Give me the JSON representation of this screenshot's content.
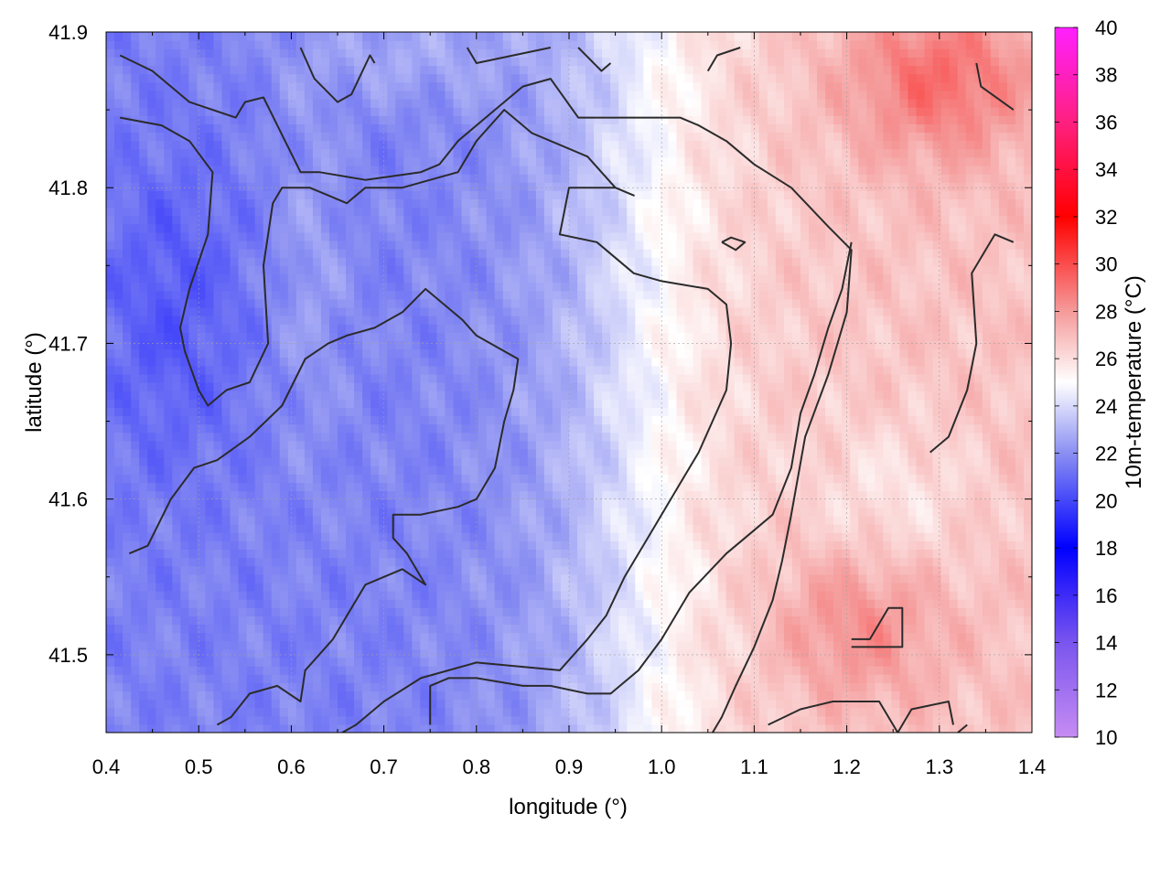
{
  "chart_data": {
    "type": "heatmap",
    "title": "",
    "xlabel": "longitude (°)",
    "ylabel": "latitude (°)",
    "colorbar_label": "10m-temperature (°C)",
    "xlim": [
      0.4,
      1.4
    ],
    "ylim": [
      41.45,
      41.9
    ],
    "x_ticks": [
      "0.4",
      "0.5",
      "0.6",
      "0.7",
      "0.8",
      "0.9",
      "1.0",
      "1.1",
      "1.2",
      "1.3",
      "1.4"
    ],
    "y_ticks": [
      "41.5",
      "41.6",
      "41.7",
      "41.8",
      "41.9"
    ],
    "colorbar_range": [
      10,
      40
    ],
    "colorbar_ticks": [
      "10",
      "12",
      "14",
      "16",
      "18",
      "20",
      "22",
      "24",
      "26",
      "28",
      "30",
      "32",
      "34",
      "36",
      "38",
      "40"
    ],
    "colormap": [
      {
        "value": 10,
        "color": "#c68cf2"
      },
      {
        "value": 14,
        "color": "#7a55ee"
      },
      {
        "value": 18,
        "color": "#0000ff"
      },
      {
        "value": 22,
        "color": "#8a8ff2"
      },
      {
        "value": 25,
        "color": "#ffffff"
      },
      {
        "value": 28,
        "color": "#f59a9a"
      },
      {
        "value": 32,
        "color": "#ff0000"
      },
      {
        "value": 36,
        "color": "#ff2080"
      },
      {
        "value": 40,
        "color": "#ff20ff"
      }
    ],
    "grid": true,
    "contour_color": "#2b2b2b",
    "contours": [
      [
        [
          0.415,
          41.885
        ],
        [
          0.45,
          41.875
        ],
        [
          0.49,
          41.855
        ],
        [
          0.54,
          41.845
        ],
        [
          0.55,
          41.855
        ],
        [
          0.57,
          41.858
        ],
        [
          0.61,
          41.81
        ],
        [
          0.63,
          41.81
        ],
        [
          0.68,
          41.805
        ],
        [
          0.74,
          41.81
        ],
        [
          0.76,
          41.815
        ],
        [
          0.78,
          41.83
        ],
        [
          0.82,
          41.85
        ],
        [
          0.85,
          41.865
        ],
        [
          0.88,
          41.87
        ],
        [
          0.91,
          41.845
        ],
        [
          1.02,
          41.845
        ],
        [
          1.04,
          41.84
        ],
        [
          1.07,
          41.83
        ],
        [
          1.1,
          41.815
        ],
        [
          1.14,
          41.8
        ],
        [
          1.18,
          41.775
        ],
        [
          1.205,
          41.76
        ],
        [
          1.2,
          41.72
        ],
        [
          1.18,
          41.68
        ],
        [
          1.155,
          41.64
        ],
        [
          1.14,
          41.59
        ],
        [
          1.13,
          41.56
        ],
        [
          1.12,
          41.535
        ],
        [
          1.1,
          41.505
        ],
        [
          1.08,
          41.48
        ],
        [
          1.065,
          41.46
        ],
        [
          1.055,
          41.45
        ]
      ],
      [
        [
          0.415,
          41.845
        ],
        [
          0.46,
          41.84
        ],
        [
          0.49,
          41.83
        ],
        [
          0.515,
          41.81
        ],
        [
          0.51,
          41.77
        ],
        [
          0.49,
          41.735
        ],
        [
          0.48,
          41.71
        ],
        [
          0.485,
          41.695
        ],
        [
          0.5,
          41.67
        ],
        [
          0.51,
          41.66
        ],
        [
          0.53,
          41.67
        ],
        [
          0.555,
          41.675
        ],
        [
          0.575,
          41.7
        ],
        [
          0.57,
          41.75
        ],
        [
          0.58,
          41.79
        ],
        [
          0.59,
          41.8
        ],
        [
          0.62,
          41.8
        ],
        [
          0.66,
          41.79
        ],
        [
          0.68,
          41.8
        ],
        [
          0.72,
          41.8
        ],
        [
          0.75,
          41.805
        ],
        [
          0.78,
          41.81
        ],
        [
          0.8,
          41.83
        ],
        [
          0.83,
          41.85
        ],
        [
          0.86,
          41.835
        ],
        [
          0.92,
          41.82
        ],
        [
          0.95,
          41.8
        ],
        [
          0.97,
          41.795
        ],
        [
          0.95,
          41.8
        ],
        [
          0.9,
          41.8
        ],
        [
          0.89,
          41.77
        ],
        [
          0.93,
          41.765
        ],
        [
          0.97,
          41.745
        ],
        [
          1.0,
          41.74
        ],
        [
          1.05,
          41.735
        ],
        [
          1.07,
          41.725
        ],
        [
          1.075,
          41.7
        ],
        [
          1.07,
          41.67
        ],
        [
          1.04,
          41.63
        ],
        [
          1.02,
          41.61
        ],
        [
          0.99,
          41.58
        ],
        [
          0.96,
          41.55
        ],
        [
          0.94,
          41.525
        ],
        [
          0.92,
          41.51
        ],
        [
          0.89,
          41.49
        ],
        [
          0.8,
          41.495
        ],
        [
          0.74,
          41.485
        ],
        [
          0.7,
          41.47
        ],
        [
          0.67,
          41.455
        ],
        [
          0.655,
          41.45
        ]
      ],
      [
        [
          0.61,
          41.89
        ],
        [
          0.625,
          41.87
        ],
        [
          0.65,
          41.855
        ],
        [
          0.665,
          41.86
        ],
        [
          0.685,
          41.885
        ],
        [
          0.69,
          41.88
        ]
      ],
      [
        [
          0.79,
          41.89
        ],
        [
          0.8,
          41.88
        ],
        [
          0.84,
          41.885
        ],
        [
          0.88,
          41.89
        ]
      ],
      [
        [
          0.91,
          41.89
        ],
        [
          0.935,
          41.875
        ],
        [
          0.945,
          41.88
        ]
      ],
      [
        [
          1.05,
          41.875
        ],
        [
          1.06,
          41.885
        ],
        [
          1.085,
          41.89
        ]
      ],
      [
        [
          1.34,
          41.88
        ],
        [
          1.345,
          41.865
        ],
        [
          1.38,
          41.85
        ]
      ],
      [
        [
          1.065,
          41.765
        ],
        [
          1.075,
          41.768
        ],
        [
          1.09,
          41.765
        ],
        [
          1.08,
          41.76
        ],
        [
          1.065,
          41.765
        ]
      ],
      [
        [
          0.425,
          41.565
        ],
        [
          0.445,
          41.57
        ],
        [
          0.47,
          41.6
        ],
        [
          0.495,
          41.62
        ],
        [
          0.52,
          41.625
        ],
        [
          0.555,
          41.64
        ],
        [
          0.59,
          41.66
        ],
        [
          0.615,
          41.69
        ],
        [
          0.64,
          41.7
        ],
        [
          0.66,
          41.705
        ],
        [
          0.69,
          41.71
        ],
        [
          0.72,
          41.72
        ],
        [
          0.745,
          41.735
        ],
        [
          0.785,
          41.715
        ],
        [
          0.8,
          41.705
        ],
        [
          0.845,
          41.69
        ],
        [
          0.84,
          41.67
        ],
        [
          0.83,
          41.65
        ],
        [
          0.82,
          41.62
        ],
        [
          0.8,
          41.6
        ],
        [
          0.78,
          41.595
        ],
        [
          0.74,
          41.59
        ],
        [
          0.71,
          41.59
        ],
        [
          0.71,
          41.575
        ],
        [
          0.725,
          41.565
        ],
        [
          0.745,
          41.545
        ],
        [
          0.72,
          41.555
        ],
        [
          0.68,
          41.545
        ],
        [
          0.66,
          41.525
        ],
        [
          0.645,
          41.51
        ],
        [
          0.63,
          41.5
        ],
        [
          0.615,
          41.49
        ],
        [
          0.61,
          41.47
        ],
        [
          0.585,
          41.48
        ],
        [
          0.555,
          41.475
        ],
        [
          0.535,
          41.46
        ],
        [
          0.52,
          41.455
        ]
      ],
      [
        [
          0.75,
          41.455
        ],
        [
          0.75,
          41.48
        ],
        [
          0.77,
          41.485
        ],
        [
          0.8,
          41.485
        ],
        [
          0.85,
          41.48
        ],
        [
          0.88,
          41.48
        ],
        [
          0.92,
          41.475
        ],
        [
          0.945,
          41.475
        ],
        [
          0.975,
          41.49
        ],
        [
          1.0,
          41.51
        ],
        [
          1.03,
          41.54
        ],
        [
          1.07,
          41.565
        ],
        [
          1.09,
          41.575
        ],
        [
          1.12,
          41.59
        ],
        [
          1.14,
          41.62
        ],
        [
          1.15,
          41.655
        ],
        [
          1.165,
          41.68
        ],
        [
          1.18,
          41.71
        ],
        [
          1.195,
          41.735
        ],
        [
          1.205,
          41.765
        ]
      ],
      [
        [
          1.115,
          41.455
        ],
        [
          1.15,
          41.465
        ],
        [
          1.185,
          41.47
        ],
        [
          1.235,
          41.47
        ],
        [
          1.255,
          41.45
        ]
      ],
      [
        [
          1.205,
          41.505
        ],
        [
          1.24,
          41.505
        ],
        [
          1.26,
          41.505
        ],
        [
          1.26,
          41.53
        ],
        [
          1.245,
          41.53
        ],
        [
          1.225,
          41.51
        ],
        [
          1.205,
          41.51
        ]
      ],
      [
        [
          1.255,
          41.45
        ],
        [
          1.27,
          41.465
        ],
        [
          1.31,
          41.47
        ],
        [
          1.315,
          41.455
        ]
      ],
      [
        [
          1.32,
          41.45
        ],
        [
          1.33,
          41.455
        ]
      ],
      [
        [
          1.29,
          41.63
        ],
        [
          1.31,
          41.64
        ],
        [
          1.33,
          41.67
        ],
        [
          1.34,
          41.7
        ],
        [
          1.335,
          41.745
        ],
        [
          1.36,
          41.77
        ],
        [
          1.38,
          41.765
        ]
      ]
    ]
  }
}
